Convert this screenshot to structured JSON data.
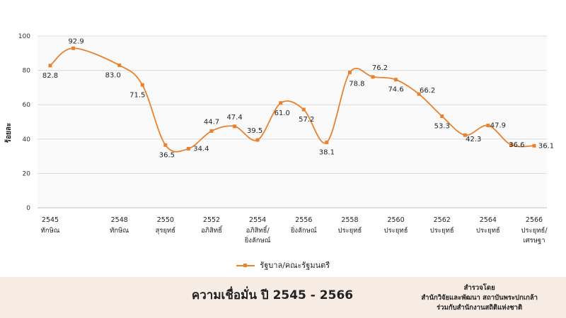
{
  "chart_data": {
    "type": "line",
    "ylabel": "ร้อยละ",
    "ylim": [
      0,
      100
    ],
    "yticks": [
      0,
      20,
      40,
      60,
      80,
      100
    ],
    "grid": true,
    "x": [
      "2545",
      "2546",
      "2548",
      "2549",
      "2550",
      "2551",
      "2552",
      "2553",
      "2554",
      "2555",
      "2556",
      "2557",
      "2558",
      "2559",
      "2560",
      "2561",
      "2562",
      "2563",
      "2564",
      "2565",
      "2566"
    ],
    "x_tick_labels": [
      {
        "year": "2545",
        "name": "ทักษิณ"
      },
      {
        "year": "2548",
        "name": "ทักษิณ"
      },
      {
        "year": "2550",
        "name": "สุรยุทธ์"
      },
      {
        "year": "2552",
        "name": "อภิสิทธิ์"
      },
      {
        "year": "2554",
        "name": "อภิสิทธิ์/",
        "name2": "ยิ่งลักษณ์"
      },
      {
        "year": "2556",
        "name": "ยิ่งลักษณ์"
      },
      {
        "year": "2558",
        "name": "ประยุทธ์"
      },
      {
        "year": "2560",
        "name": "ประยุทธ์"
      },
      {
        "year": "2562",
        "name": "ประยุทธ์"
      },
      {
        "year": "2564",
        "name": "ประยุทธ์"
      },
      {
        "year": "2566",
        "name": "ประยุทธ์/",
        "name2": "เศรษฐา"
      }
    ],
    "series": [
      {
        "name": "รัฐบาล/คณะรัฐมนตรี",
        "values": [
          82.8,
          92.9,
          83.0,
          71.5,
          36.5,
          34.4,
          44.7,
          47.4,
          39.5,
          61.0,
          57.2,
          38.1,
          78.8,
          76.2,
          74.6,
          66.2,
          53.3,
          42.3,
          47.9,
          36.6,
          36.1
        ],
        "labels": [
          "82.8",
          "92.9",
          "83.0",
          "71.5",
          "36.5",
          "34.4",
          "44.7",
          "47.4",
          "39.5",
          "61.0",
          "57.2",
          "38.1",
          "78.8",
          "76.2",
          "74.6",
          "66.2",
          "53.3",
          "42.3",
          "47.9",
          "36.6",
          "36.1"
        ]
      }
    ],
    "legend": "bottom",
    "colors": {
      "line": "#E8822E",
      "grid": "#D9D9D9",
      "footer_bg": "#F6ECE4"
    }
  },
  "footer": {
    "title": "ความเชื่อมั่น ปี 2545 - 2566",
    "source": [
      "สำรวจโดย",
      "สำนักวิจัยและพัฒนา สถาบันพระปกเกล้า",
      "ร่วมกับสำนักงานสถิติแห่งชาติ"
    ]
  }
}
